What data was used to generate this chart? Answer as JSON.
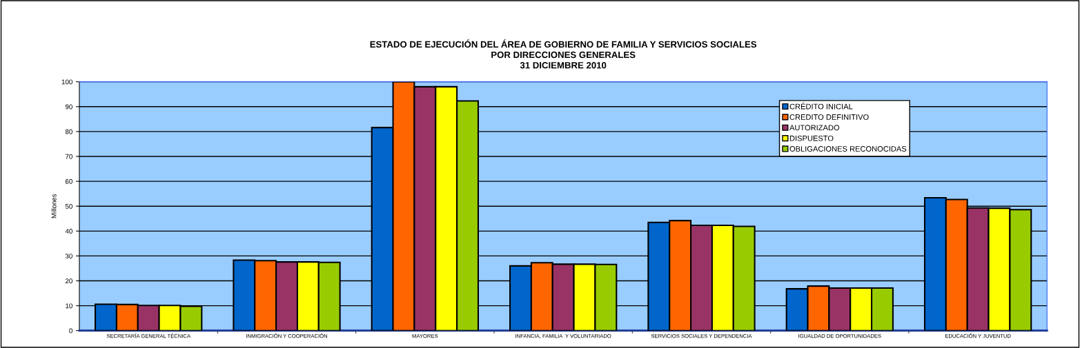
{
  "chart_data": {
    "type": "bar",
    "title": "ESTADO DE EJECUCIÓN DEL ÁREA DE GOBIERNO DE FAMILIA Y SERVICIOS SOCIALES\nPOR DIRECCIONES GENERALES\n31 DICIEMBRE 2010",
    "ylabel": "Millones",
    "categories": [
      "SECRETARÍA GENERAL TÉCNICA",
      "INMIGRACIÓN Y COOPERACIÓN",
      "MAYORES",
      "INFANCIA, FAMILIA  Y VOLUNTARIADO",
      "SERVICIOS SOCIALES Y DEPENDENCIA",
      "IGUALDAD DE OPORTUNIDADES",
      "EDUCACIÓN Y JUVENTUD"
    ],
    "series": [
      {
        "name": "CRÉDITO INICIAL",
        "color": "#0066cc",
        "values": [
          10.6,
          28.3,
          81.6,
          26.0,
          43.5,
          16.8,
          53.4
        ]
      },
      {
        "name": "CREDITO DEFINITIVO",
        "color": "#ff6600",
        "values": [
          10.5,
          28.1,
          100,
          27.3,
          44.2,
          17.9,
          52.7
        ]
      },
      {
        "name": "AUTORIZADO",
        "color": "#993366",
        "values": [
          10.1,
          27.6,
          98.0,
          26.7,
          42.3,
          17.1,
          49.3
        ]
      },
      {
        "name": "DISPUESTO",
        "color": "#ffff00",
        "values": [
          10.1,
          27.6,
          98.0,
          26.7,
          42.3,
          17.1,
          49.2
        ]
      },
      {
        "name": "OBLIGACIONES RECONOCIDAS",
        "color": "#99cc00",
        "values": [
          9.8,
          27.4,
          92.3,
          26.6,
          41.9,
          17.1,
          48.6
        ]
      }
    ],
    "ylim": [
      0,
      100
    ],
    "yticks": [
      0,
      10,
      20,
      30,
      40,
      50,
      60,
      70,
      80,
      90,
      100
    ],
    "grid": "y",
    "legend": "top right"
  }
}
